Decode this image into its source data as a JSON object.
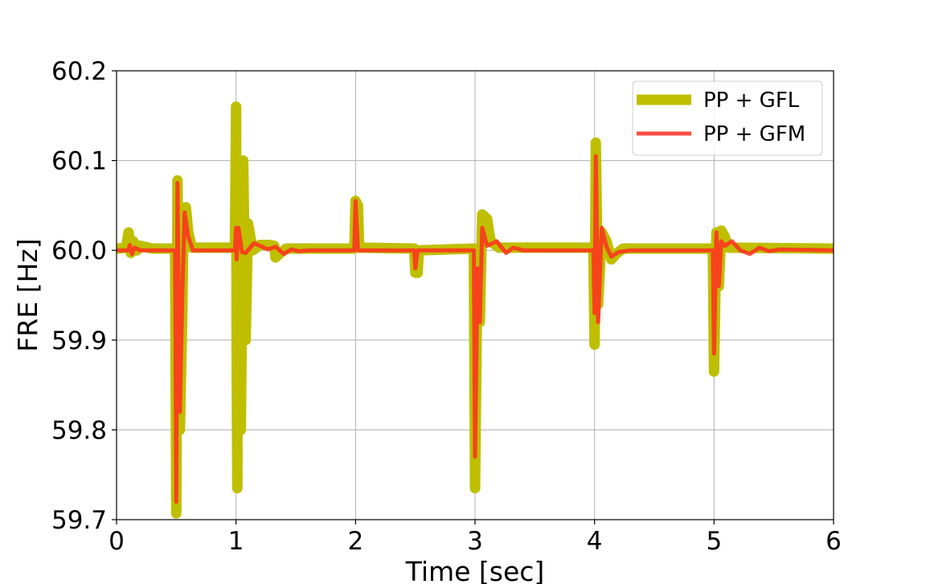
{
  "chart_data": {
    "type": "line",
    "title": "",
    "xlabel": "Time [sec]",
    "ylabel": "FRE [Hz]",
    "xlim": [
      0,
      6
    ],
    "ylim": [
      59.7,
      60.2
    ],
    "x_ticks": [
      "0",
      "1",
      "2",
      "3",
      "4",
      "5",
      "6"
    ],
    "y_ticks": [
      "59.7",
      "59.8",
      "59.9",
      "60.0",
      "60.1",
      "60.2"
    ],
    "grid": true,
    "legend_position": "upper-right",
    "series": [
      {
        "name": "PP + GFL",
        "color": "#bfbf00",
        "style": "thick",
        "points": [
          [
            0.0,
            60.002
          ],
          [
            0.08,
            60.003
          ],
          [
            0.1,
            60.02
          ],
          [
            0.12,
            59.997
          ],
          [
            0.14,
            60.01
          ],
          [
            0.17,
            60.0
          ],
          [
            0.2,
            60.005
          ],
          [
            0.3,
            60.002
          ],
          [
            0.49,
            60.002
          ],
          [
            0.5,
            59.707
          ],
          [
            0.51,
            60.078
          ],
          [
            0.53,
            59.8
          ],
          [
            0.55,
            59.93
          ],
          [
            0.56,
            60.03
          ],
          [
            0.58,
            60.048
          ],
          [
            0.6,
            60.02
          ],
          [
            0.63,
            60.003
          ],
          [
            0.99,
            60.003
          ],
          [
            1.0,
            60.16
          ],
          [
            1.005,
            59.89
          ],
          [
            1.01,
            59.735
          ],
          [
            1.02,
            60.08
          ],
          [
            1.04,
            59.8
          ],
          [
            1.06,
            60.1
          ],
          [
            1.08,
            59.9
          ],
          [
            1.1,
            60.03
          ],
          [
            1.14,
            60.0
          ],
          [
            1.2,
            60.006
          ],
          [
            1.28,
            60.006
          ],
          [
            1.32,
            60.005
          ],
          [
            1.33,
            59.992
          ],
          [
            1.37,
            59.997
          ],
          [
            1.42,
            60.002
          ],
          [
            1.99,
            60.002
          ],
          [
            2.0,
            60.055
          ],
          [
            2.02,
            60.05
          ],
          [
            2.03,
            60.003
          ],
          [
            2.49,
            60.002
          ],
          [
            2.5,
            59.975
          ],
          [
            2.52,
            59.975
          ],
          [
            2.53,
            60.0
          ],
          [
            2.99,
            60.002
          ],
          [
            3.0,
            59.735
          ],
          [
            3.02,
            59.99
          ],
          [
            3.04,
            59.92
          ],
          [
            3.06,
            60.04
          ],
          [
            3.1,
            60.035
          ],
          [
            3.13,
            60.01
          ],
          [
            3.2,
            60.003
          ],
          [
            3.99,
            60.003
          ],
          [
            4.0,
            59.895
          ],
          [
            4.01,
            60.12
          ],
          [
            4.03,
            59.94
          ],
          [
            4.06,
            60.02
          ],
          [
            4.1,
            60.01
          ],
          [
            4.14,
            59.99
          ],
          [
            4.18,
            59.996
          ],
          [
            4.24,
            60.002
          ],
          [
            4.99,
            60.002
          ],
          [
            5.0,
            59.865
          ],
          [
            5.02,
            60.02
          ],
          [
            5.04,
            59.96
          ],
          [
            5.06,
            60.022
          ],
          [
            5.09,
            60.015
          ],
          [
            5.12,
            60.003
          ],
          [
            6.0,
            60.002
          ]
        ]
      },
      {
        "name": "PP + GFM",
        "color": "#ff2d20",
        "style": "thin",
        "points": [
          [
            0.0,
            60.0
          ],
          [
            0.1,
            60.0
          ],
          [
            0.11,
            60.006
          ],
          [
            0.13,
            59.996
          ],
          [
            0.15,
            60.003
          ],
          [
            0.2,
            60.0
          ],
          [
            0.49,
            60.0
          ],
          [
            0.5,
            59.72
          ],
          [
            0.51,
            60.075
          ],
          [
            0.53,
            59.82
          ],
          [
            0.55,
            59.95
          ],
          [
            0.57,
            60.042
          ],
          [
            0.6,
            60.015
          ],
          [
            0.64,
            60.0
          ],
          [
            0.99,
            60.0
          ],
          [
            1.0,
            60.025
          ],
          [
            1.005,
            59.99
          ],
          [
            1.02,
            60.025
          ],
          [
            1.05,
            59.998
          ],
          [
            1.08,
            59.997
          ],
          [
            1.15,
            60.008
          ],
          [
            1.2,
            60.005
          ],
          [
            1.27,
            60.001
          ],
          [
            1.33,
            60.004
          ],
          [
            1.4,
            59.996
          ],
          [
            1.46,
            60.001
          ],
          [
            1.53,
            59.999
          ],
          [
            1.6,
            60.0
          ],
          [
            1.99,
            60.0
          ],
          [
            2.0,
            60.055
          ],
          [
            2.02,
            60.0
          ],
          [
            2.49,
            60.0
          ],
          [
            2.5,
            59.98
          ],
          [
            2.52,
            60.0
          ],
          [
            2.99,
            60.0
          ],
          [
            3.0,
            59.77
          ],
          [
            3.02,
            59.98
          ],
          [
            3.04,
            59.92
          ],
          [
            3.06,
            60.025
          ],
          [
            3.1,
            60.005
          ],
          [
            3.18,
            60.01
          ],
          [
            3.26,
            59.997
          ],
          [
            3.32,
            60.003
          ],
          [
            3.4,
            60.0
          ],
          [
            3.99,
            60.0
          ],
          [
            4.0,
            59.93
          ],
          [
            4.01,
            60.105
          ],
          [
            4.03,
            59.92
          ],
          [
            4.06,
            60.025
          ],
          [
            4.1,
            60.004
          ],
          [
            4.14,
            59.993
          ],
          [
            4.2,
            59.998
          ],
          [
            4.3,
            60.0
          ],
          [
            4.99,
            60.0
          ],
          [
            5.0,
            59.885
          ],
          [
            5.02,
            60.02
          ],
          [
            5.04,
            59.96
          ],
          [
            5.06,
            60.01
          ],
          [
            5.09,
            60.005
          ],
          [
            5.15,
            60.01
          ],
          [
            5.22,
            60.0
          ],
          [
            5.3,
            59.996
          ],
          [
            5.38,
            60.003
          ],
          [
            5.46,
            59.999
          ],
          [
            5.55,
            60.001
          ],
          [
            6.0,
            60.0
          ]
        ]
      }
    ]
  }
}
